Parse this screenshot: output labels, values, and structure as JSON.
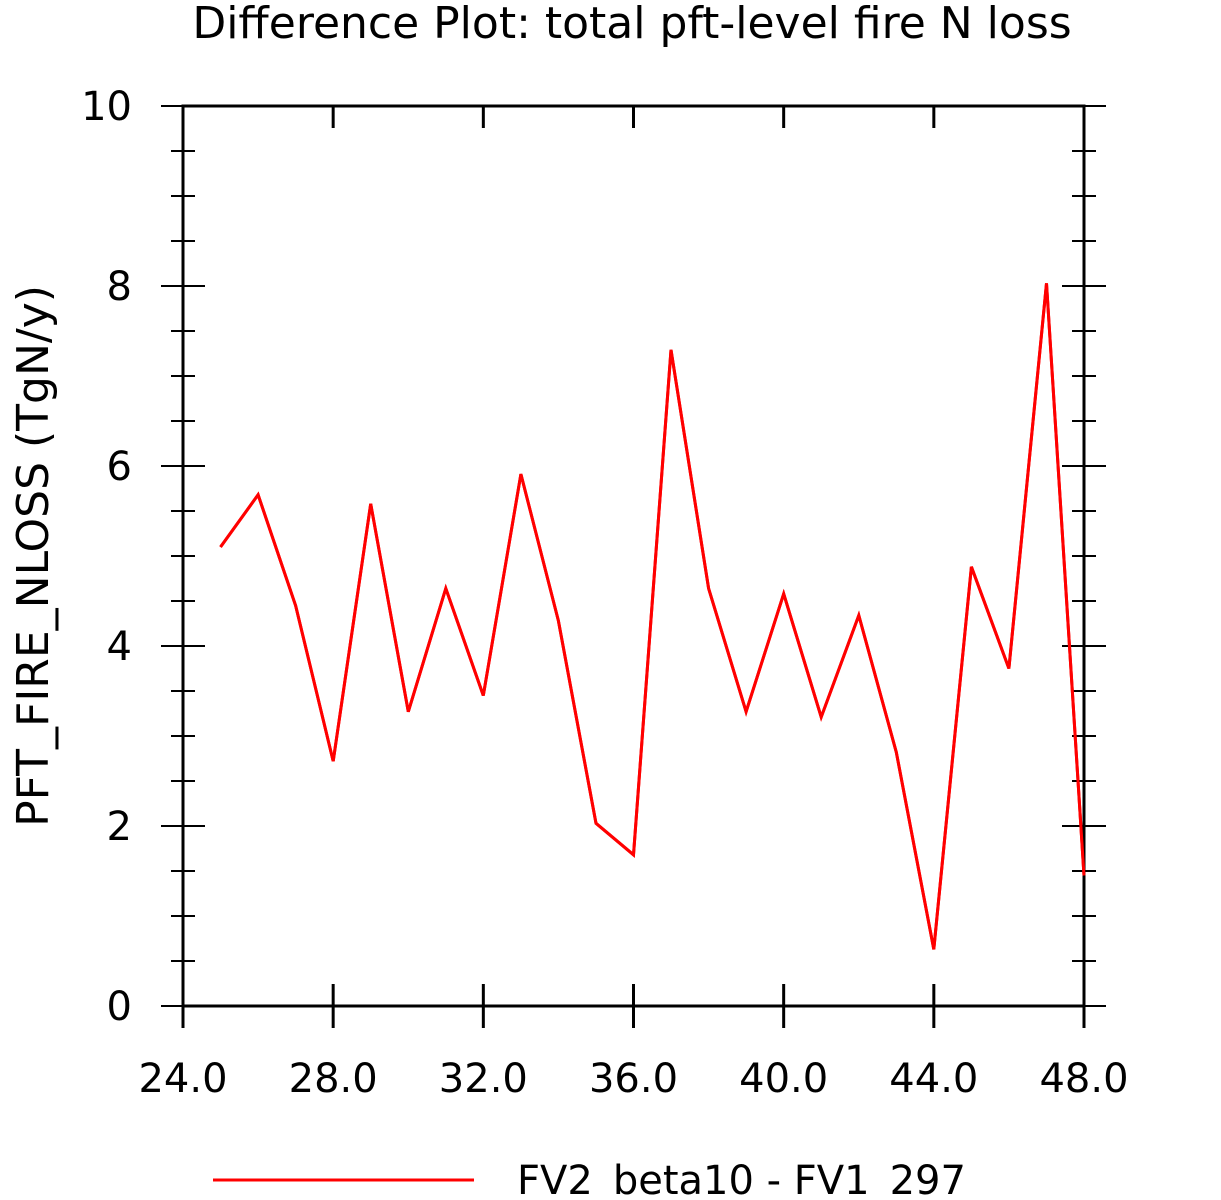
{
  "chart_data": {
    "type": "line",
    "title": "Difference Plot: total pft-level fire N loss",
    "xlabel": "",
    "ylabel": "PFT_FIRE_NLOSS  (TgN/y)",
    "xlim": [
      24,
      48
    ],
    "ylim": [
      0,
      10
    ],
    "x_ticks": [
      "24.0",
      "28.0",
      "32.0",
      "36.0",
      "40.0",
      "44.0",
      "48.0"
    ],
    "y_ticks": [
      "0",
      "2",
      "4",
      "6",
      "8",
      "10"
    ],
    "grid": false,
    "legend_position": "bottom-center",
    "series": [
      {
        "name": "FV2_beta10 - FV1_297",
        "color": "#ff0000",
        "x": [
          25,
          26,
          27,
          28,
          29,
          30,
          31,
          32,
          33,
          34,
          35,
          36,
          37,
          38,
          39,
          40,
          41,
          42,
          43,
          44,
          45,
          46,
          47,
          48
        ],
        "y": [
          5.1,
          5.68,
          4.45,
          2.72,
          5.58,
          3.27,
          4.64,
          3.45,
          5.91,
          4.28,
          2.03,
          1.68,
          7.29,
          4.64,
          3.27,
          4.58,
          3.21,
          4.34,
          2.82,
          0.63,
          4.88,
          3.75,
          8.03,
          1.45
        ]
      }
    ]
  }
}
